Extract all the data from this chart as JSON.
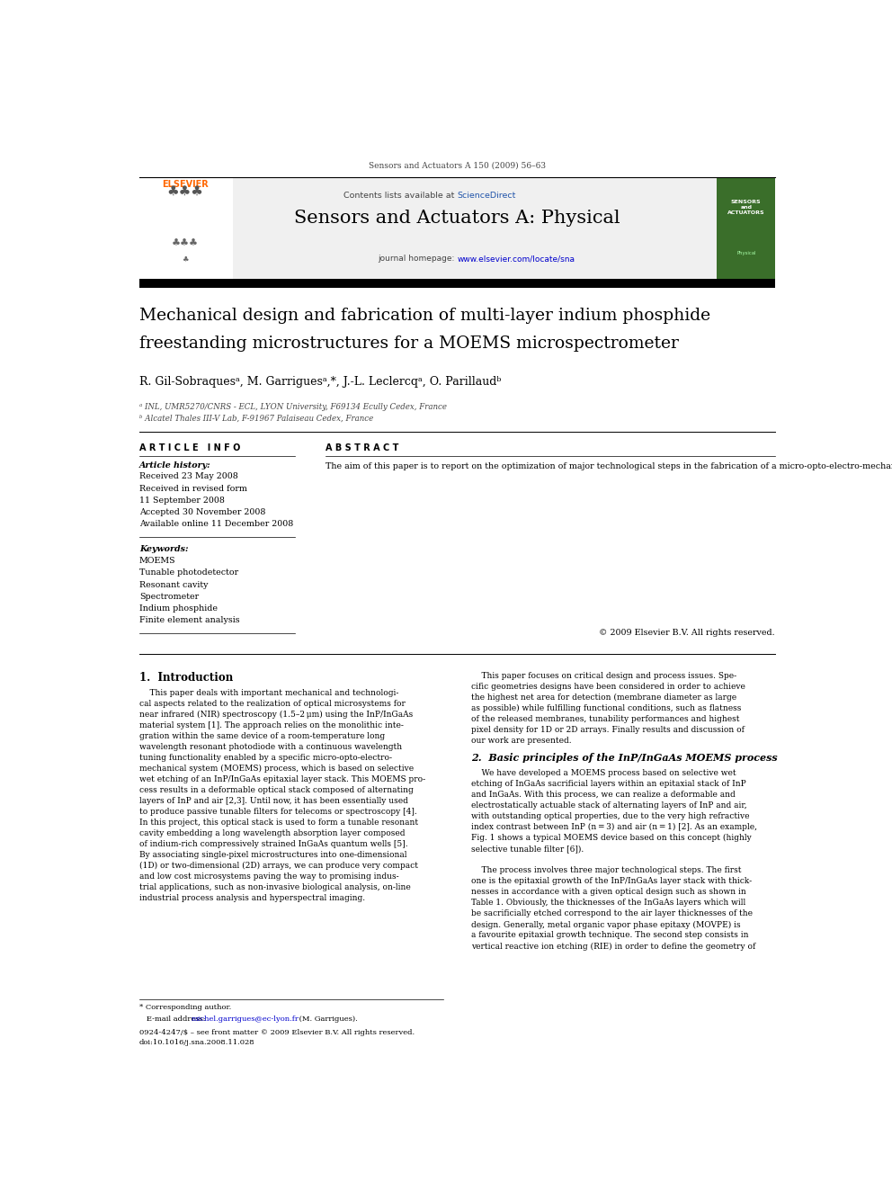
{
  "page_width": 9.92,
  "page_height": 13.23,
  "bg_color": "#ffffff",
  "header_journal": "Sensors and Actuators A 150 (2009) 56–63",
  "contents_line_prefix": "Contents lists available at ",
  "contents_line_link": "ScienceDirect",
  "journal_title": "Sensors and Actuators A: Physical",
  "journal_homepage_prefix": "journal homepage: ",
  "journal_homepage_url": "www.elsevier.com/locate/sna",
  "paper_title_line1": "Mechanical design and fabrication of multi-layer indium phosphide",
  "paper_title_line2": "freestanding microstructures for a MOEMS microspectrometer",
  "authors": "R. Gil-Sobraquesᵃ, M. Garriguesᵃ,*, J.-L. Leclercqᵃ, O. Parillaudᵇ",
  "affil_a": "ᵃ INL, UMR5270/CNRS - ECL, LYON University, F69134 Ecully Cedex, France",
  "affil_b": "ᵇ Alcatel Thales III-V Lab, F-91967 Palaiseau Cedex, France",
  "article_info_title": "A R T I C L E   I N F O",
  "article_history_title": "Article history:",
  "article_history_lines": [
    "Received 23 May 2008",
    "Received in revised form",
    "11 September 2008",
    "Accepted 30 November 2008",
    "Available online 11 December 2008"
  ],
  "keywords_title": "Keywords:",
  "keywords_lines": [
    "MOEMS",
    "Tunable photodetector",
    "Resonant cavity",
    "Spectrometer",
    "Indium phosphide",
    "Finite element analysis"
  ],
  "abstract_title": "A B S T R A C T",
  "abstract_text": "The aim of this paper is to report on the optimization of major technological steps in the fabrication of a micro-opto-electro-mechanical system (MOEMS) composed of an actuable stack of free-standing indium phosphide layers. The projected MOEMS device is a microspectrometer based on a tunable Fabry–Pérot resonator embedding a near infrared photodiode. Two specific structure shapes have been designed and optimized using finite element modelling in order to reduce the sensitivity to residual strain and to improve the compactness of the devices. Various test devices have been fabricated ranging from single isolated structures to one-dimensional (1 × 9) or two-dimensional (3 × 3) arrays. Experimental measurements using white light interference profilometry show a good agreement with design simulations.",
  "abstract_copyright": "© 2009 Elsevier B.V. All rights reserved.",
  "section1_title": "1.  Introduction",
  "section1_left_lines": [
    "    This paper deals with important mechanical and technologi-",
    "cal aspects related to the realization of optical microsystems for",
    "near infrared (NIR) spectroscopy (1.5–2 μm) using the InP/InGaAs",
    "material system [1]. The approach relies on the monolithic inte-",
    "gration within the same device of a room-temperature long",
    "wavelength resonant photodiode with a continuous wavelength",
    "tuning functionality enabled by a specific micro-opto-electro-",
    "mechanical system (MOEMS) process, which is based on selective",
    "wet etching of an InP/InGaAs epitaxial layer stack. This MOEMS pro-",
    "cess results in a deformable optical stack composed of alternating",
    "layers of InP and air [2,3]. Until now, it has been essentially used",
    "to produce passive tunable filters for telecoms or spectroscopy [4].",
    "In this project, this optical stack is used to form a tunable resonant",
    "cavity embedding a long wavelength absorption layer composed",
    "of indium-rich compressively strained InGaAs quantum wells [5].",
    "By associating single-pixel microstructures into one-dimensional",
    "(1D) or two-dimensional (2D) arrays, we can produce very compact",
    "and low cost microsystems paving the way to promising indus-",
    "trial applications, such as non-invasive biological analysis, on-line",
    "industrial process analysis and hyperspectral imaging."
  ],
  "section1_right_lines": [
    "    This paper focuses on critical design and process issues. Spe-",
    "cific geometries designs have been considered in order to achieve",
    "the highest net area for detection (membrane diameter as large",
    "as possible) while fulfilling functional conditions, such as flatness",
    "of the released membranes, tunability performances and highest",
    "pixel density for 1D or 2D arrays. Finally results and discussion of",
    "our work are presented."
  ],
  "section2_title": "2.  Basic principles of the InP/InGaAs MOEMS process",
  "section2_right_lines": [
    "    We have developed a MOEMS process based on selective wet",
    "etching of InGaAs sacrificial layers within an epitaxial stack of InP",
    "and InGaAs. With this process, we can realize a deformable and",
    "electrostatically actuable stack of alternating layers of InP and air,",
    "with outstanding optical properties, due to the very high refractive",
    "index contrast between InP (n = 3) and air (n = 1) [2]. As an example,",
    "Fig. 1 shows a typical MOEMS device based on this concept (highly",
    "selective tunable filter [6]).",
    "",
    "    The process involves three major technological steps. The first",
    "one is the epitaxial growth of the InP/InGaAs layer stack with thick-",
    "nesses in accordance with a given optical design such as shown in",
    "Table 1. Obviously, the thicknesses of the InGaAs layers which will",
    "be sacrificially etched correspond to the air layer thicknesses of the",
    "design. Generally, metal organic vapor phase epitaxy (MOVPE) is",
    "a favourite epitaxial growth technique. The second step consists in",
    "vertical reactive ion etching (RIE) in order to define the geometry of"
  ],
  "footer_star": "* Corresponding author.",
  "footer_email_prefix": "   E-mail address: ",
  "footer_email": "michel.garrigues@ec-lyon.fr",
  "footer_email_suffix": " (M. Garrigues).",
  "footer_line2": "0924-4247/$ – see front matter © 2009 Elsevier B.V. All rights reserved.",
  "footer_doi": "doi:10.1016/j.sna.2008.11.028",
  "black": "#000000",
  "dark_gray": "#444444",
  "med_gray": "#888888",
  "blue_link": "#0000cc",
  "sciencedirect_blue": "#2255aa",
  "orange": "#FF6600",
  "green_cover": "#3a6e2a",
  "header_gray": "#f0f0f0"
}
